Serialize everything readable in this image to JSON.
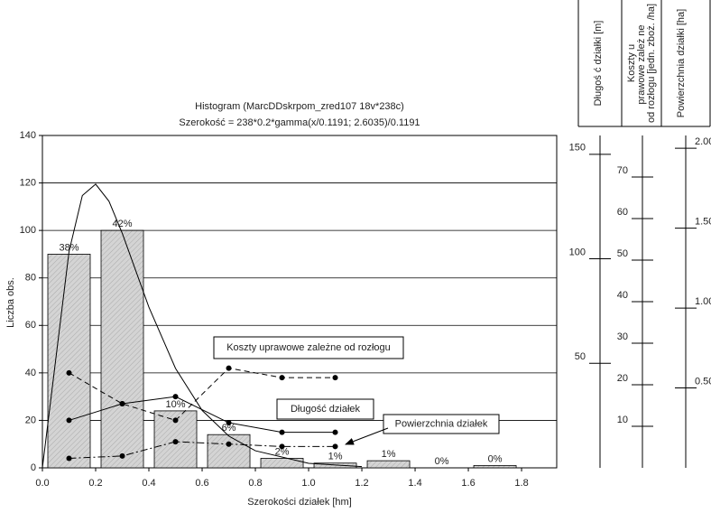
{
  "chart_data": {
    "type": "histogram",
    "title": "Histogram (MarcDDskrpom_zred107 18v*238c)",
    "subtitle": "Szerokość = 238*0.2*gamma(x/0.1191; 2.6035)/0.1191",
    "xlabel": "Szerokości działek [hm]",
    "ylabel": "Liczba obs.",
    "bins": [
      0,
      0.2,
      0.4,
      0.6,
      0.8,
      1.0,
      1.2,
      1.4,
      1.6,
      1.8
    ],
    "counts": [
      90,
      100,
      24,
      14,
      4,
      2,
      3,
      0,
      1
    ],
    "value_labels": [
      "38%",
      "42%",
      "10%",
      "6%",
      "2%",
      "1%",
      "1%",
      "0%",
      "0%"
    ],
    "bar_color": "#d4d4d4",
    "xlim": [
      0,
      1.932
    ],
    "ylim": [
      0,
      140
    ],
    "xticks": [
      {
        "value": 0,
        "label": "0.0"
      },
      0.2,
      0.4,
      0.6,
      0.8,
      {
        "value": 1,
        "label": "1.0"
      },
      1.2,
      1.4,
      1.6,
      1.8
    ],
    "yticks": [
      0,
      20,
      40,
      60,
      80,
      100,
      120,
      140
    ],
    "grid": true,
    "curve": {
      "x": [
        0,
        0.05,
        0.1,
        0.15,
        0.2,
        0.25,
        0.3,
        0.4,
        0.5,
        0.6,
        0.7,
        0.8,
        1.0,
        1.2
      ],
      "y": [
        0,
        45.6,
        91.1,
        114.7,
        119.5,
        112.3,
        98.8,
        67.7,
        41.9,
        24.2,
        13.4,
        7.2,
        1.9,
        0.5
      ]
    },
    "series": [
      {
        "name": "Koszty uprawowe zależne od rozłogu",
        "style": "dashed",
        "x": [
          0.1,
          0.3,
          0.5,
          0.7,
          0.9,
          1.1
        ],
        "values": [
          40,
          27,
          20,
          42,
          38,
          38
        ]
      },
      {
        "name": "Długość działek",
        "style": "solid",
        "x": [
          0.1,
          0.3,
          0.5,
          0.7,
          0.9,
          1.1
        ],
        "values": [
          20,
          27,
          30,
          19,
          15,
          15
        ]
      },
      {
        "name": "Powierzchnia działek",
        "style": "dashdot",
        "x": [
          0.1,
          0.3,
          0.5,
          0.7,
          0.9,
          1.1
        ],
        "values": [
          4,
          5,
          11,
          10,
          9,
          9
        ]
      }
    ],
    "right_axes": [
      {
        "label": "Długoś ć działki [m]",
        "ylim": [
          0,
          159
        ],
        "ticks": [
          50,
          100,
          150
        ]
      },
      {
        "label": "Koszty uprawowe zależ ne od rozłogu [jedn. zboż. /ha]",
        "ylim": [
          0,
          80
        ],
        "ticks": [
          10,
          20,
          30,
          40,
          50,
          60,
          70
        ]
      },
      {
        "label": "Powierzchnia działki [ha]",
        "ylim": [
          0,
          2.08
        ],
        "ticks": [
          {
            "value": 0.5,
            "label": "0.50"
          },
          {
            "value": 1,
            "label": "1.00"
          },
          {
            "value": 1.5,
            "label": "1.50"
          },
          {
            "value": 2,
            "label": "2.00"
          }
        ]
      }
    ]
  }
}
